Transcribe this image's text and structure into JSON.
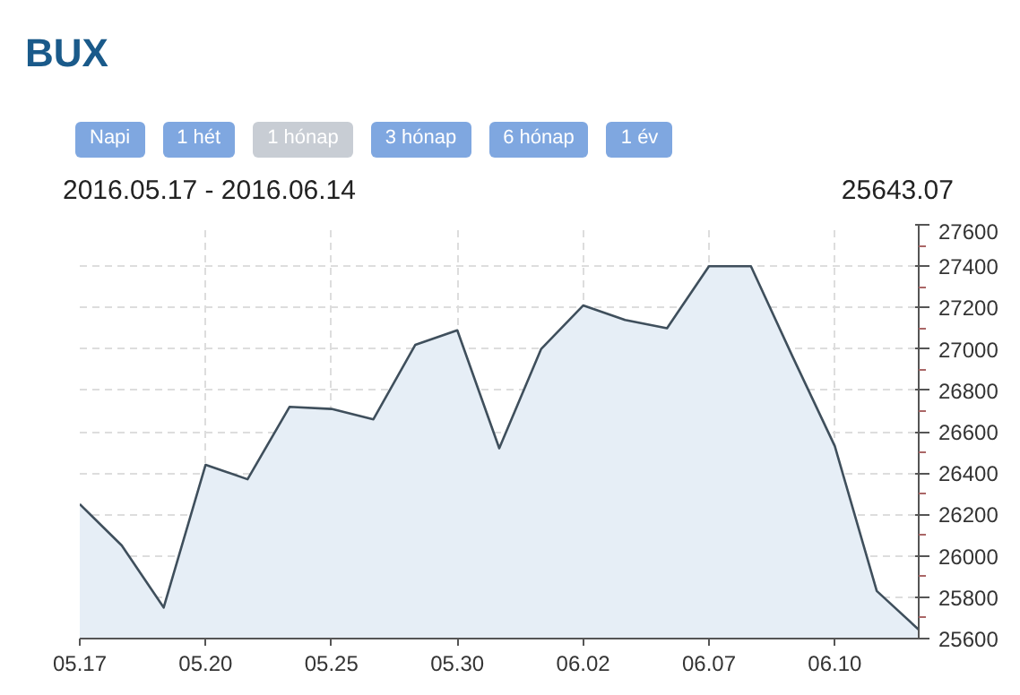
{
  "chart_data": {
    "type": "area",
    "title": "BUX",
    "subtitle": "2016.05.17 - 2016.06.14",
    "annotations": [
      "Napi",
      "1 hét",
      "1 hónap",
      "3 hónap",
      "6 hónap",
      "1 év",
      "25643.07"
    ],
    "categories": [
      "05.17",
      null,
      null,
      "05.20",
      null,
      null,
      "05.25",
      null,
      null,
      "05.30",
      null,
      null,
      "06.02",
      null,
      null,
      "06.07",
      null,
      null,
      "06.10",
      null,
      null
    ],
    "series": [
      {
        "color": "#3f4f5c",
        "values": [
          26250,
          26050,
          25750,
          26440,
          26370,
          26720,
          26710,
          26660,
          27020,
          27090,
          26520,
          27000,
          27210,
          27140,
          27100,
          27400,
          27400,
          26960,
          26530,
          25830,
          25643.07
        ]
      }
    ],
    "ylim": [
      25600,
      27600
    ],
    "yticks": [
      25600,
      25800,
      26000,
      26200,
      26400,
      26600,
      26800,
      27000,
      27200,
      27400,
      27600
    ],
    "grid": true
  }
}
